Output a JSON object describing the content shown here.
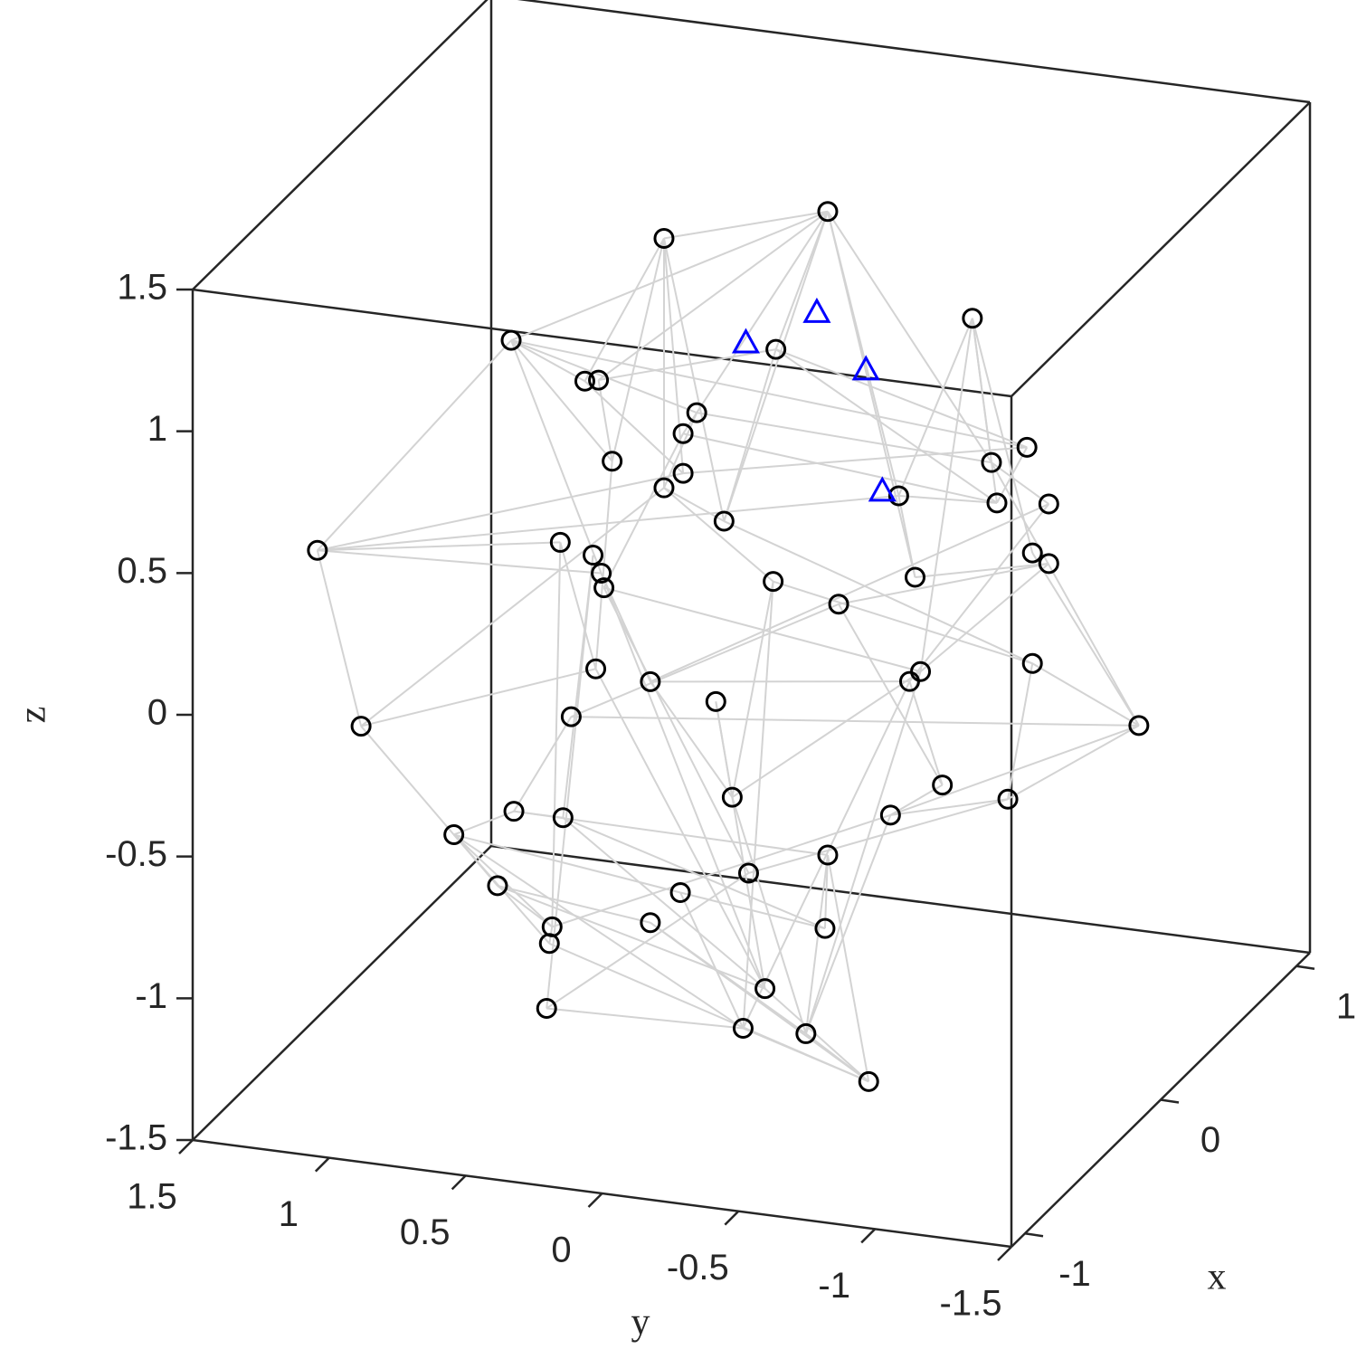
{
  "chart_data": {
    "type": "graph3d",
    "xlabel": "x",
    "ylabel": "y",
    "zlabel": "z",
    "xlim": [
      -1.1,
      1.1
    ],
    "ylim": [
      -1.5,
      1.5
    ],
    "zlim": [
      -1.5,
      1.5
    ],
    "xticks": [
      -1,
      0,
      1
    ],
    "yticks": [
      1.5,
      1,
      0.5,
      0,
      -0.5,
      -1,
      -1.5
    ],
    "zticks": [
      -1.5,
      -1,
      -0.5,
      0,
      0.5,
      1,
      1.5
    ],
    "edge_color": "#d3d3d3",
    "series": [
      {
        "marker": "circle",
        "color": "#000000",
        "y": [
          -0.28,
          0.32,
          -0.81,
          0.88,
          -0.09,
          0.61,
          0.56,
          0.2,
          0.25,
          0.51,
          -1.01,
          -0.88,
          0.25,
          0.32,
          -0.54,
          -0.9,
          -1.09,
          0.1,
          1.59,
          0.7,
          0.58,
          -1.03,
          -1.09,
          0.55,
          -0.6,
          -0.08,
          0.54,
          -0.32,
          -1.03,
          0.57,
          -0.62,
          0.37,
          -0.58,
          0.13,
          0.66,
          1.43,
          -1.42,
          0.07,
          -0.7,
          -0.94,
          0.87,
          0.69,
          -0.51,
          1.09,
          -0.28,
          0.01,
          0.93,
          0.26,
          0.73,
          0.37,
          -0.27,
          0.74,
          -0.05,
          0.75,
          0.03,
          -0.2,
          -0.43
        ],
        "z": [
          1.48,
          1.31,
          1.17,
          0.88,
          0.97,
          0.77,
          0.78,
          0.71,
          0.63,
          0.5,
          0.74,
          0.67,
          0.49,
          0.43,
          0.51,
          0.53,
          0.55,
          0.34,
          0.05,
          0.19,
          0.16,
          0.37,
          0.34,
          0.1,
          0.23,
          0.15,
          0.05,
          0.1,
          -0.02,
          -0.24,
          -0.1,
          -0.26,
          -0.14,
          -0.3,
          -0.42,
          -0.55,
          -0.19,
          -0.63,
          -0.49,
          -0.51,
          -0.78,
          -0.78,
          -0.62,
          -0.89,
          -0.79,
          -0.89,
          -1.05,
          -0.99,
          -1.17,
          -1.11,
          -1.05,
          -1.23,
          -1.29,
          -1.46,
          -1.44,
          -1.43,
          -1.57
        ]
      },
      {
        "marker": "triangle",
        "color": "#0000ff",
        "y": [
          -0.24,
          0.02,
          -0.42,
          -0.48
        ],
        "z": [
          1.12,
          0.98,
          0.94,
          0.52
        ]
      }
    ],
    "edges": [
      [
        0,
        1
      ],
      [
        0,
        4
      ],
      [
        0,
        6
      ],
      [
        0,
        8
      ],
      [
        0,
        11
      ],
      [
        0,
        14
      ],
      [
        0,
        17
      ],
      [
        0,
        24
      ],
      [
        0,
        3
      ],
      [
        1,
        5
      ],
      [
        1,
        9
      ],
      [
        1,
        12
      ],
      [
        1,
        13
      ],
      [
        1,
        17
      ],
      [
        3,
        5
      ],
      [
        3,
        18
      ],
      [
        3,
        9
      ],
      [
        3,
        10
      ],
      [
        3,
        7
      ],
      [
        3,
        23
      ],
      [
        2,
        11
      ],
      [
        2,
        15
      ],
      [
        2,
        21
      ],
      [
        2,
        14
      ],
      [
        2,
        30
      ],
      [
        18,
        35
      ],
      [
        18,
        23
      ],
      [
        18,
        19
      ],
      [
        18,
        12
      ],
      [
        18,
        14
      ],
      [
        35,
        43
      ],
      [
        35,
        29
      ],
      [
        35,
        13
      ],
      [
        43,
        46
      ],
      [
        43,
        51
      ],
      [
        43,
        48
      ],
      [
        43,
        54
      ],
      [
        43,
        40
      ],
      [
        43,
        47
      ],
      [
        46,
        52
      ],
      [
        46,
        48
      ],
      [
        46,
        49
      ],
      [
        53,
        54
      ],
      [
        53,
        20
      ],
      [
        53,
        45
      ],
      [
        56,
        54
      ],
      [
        56,
        55
      ],
      [
        56,
        52
      ],
      [
        56,
        49
      ],
      [
        56,
        44
      ],
      [
        54,
        25
      ],
      [
        54,
        32
      ],
      [
        54,
        47
      ],
      [
        55,
        30
      ],
      [
        55,
        42
      ],
      [
        55,
        44
      ],
      [
        55,
        37
      ],
      [
        52,
        41
      ],
      [
        52,
        29
      ],
      [
        52,
        33
      ],
      [
        36,
        28
      ],
      [
        36,
        21
      ],
      [
        36,
        42
      ],
      [
        36,
        39
      ],
      [
        36,
        34
      ],
      [
        36,
        11
      ],
      [
        39,
        28
      ],
      [
        39,
        42
      ],
      [
        39,
        45
      ],
      [
        38,
        32
      ],
      [
        38,
        42
      ],
      [
        38,
        27
      ],
      [
        37,
        33
      ],
      [
        37,
        31
      ],
      [
        37,
        30
      ],
      [
        37,
        25
      ],
      [
        19,
        48
      ],
      [
        19,
        29
      ],
      [
        20,
        41
      ],
      [
        23,
        31
      ],
      [
        23,
        52
      ],
      [
        26,
        30
      ],
      [
        26,
        45
      ],
      [
        26,
        8
      ],
      [
        29,
        9
      ],
      [
        31,
        16
      ],
      [
        31,
        32
      ],
      [
        32,
        16
      ],
      [
        30,
        22
      ],
      [
        24,
        22
      ],
      [
        24,
        14
      ],
      [
        25,
        13
      ],
      [
        25,
        28
      ],
      [
        27,
        22
      ],
      [
        27,
        34
      ],
      [
        14,
        15
      ],
      [
        10,
        15
      ],
      [
        10,
        4
      ],
      [
        16,
        11
      ],
      [
        4,
        6
      ],
      [
        4,
        17
      ],
      [
        4,
        15
      ],
      [
        5,
        12
      ],
      [
        6,
        9
      ],
      [
        7,
        11
      ],
      [
        7,
        13
      ],
      [
        8,
        15
      ],
      [
        12,
        10
      ],
      [
        13,
        17
      ],
      [
        17,
        28
      ],
      [
        40,
        41
      ],
      [
        40,
        44
      ],
      [
        41,
        50
      ],
      [
        42,
        48
      ],
      [
        44,
        50
      ],
      [
        49,
        55
      ],
      [
        47,
        50
      ],
      [
        51,
        56
      ],
      [
        51,
        48
      ],
      [
        34,
        40
      ]
    ]
  }
}
